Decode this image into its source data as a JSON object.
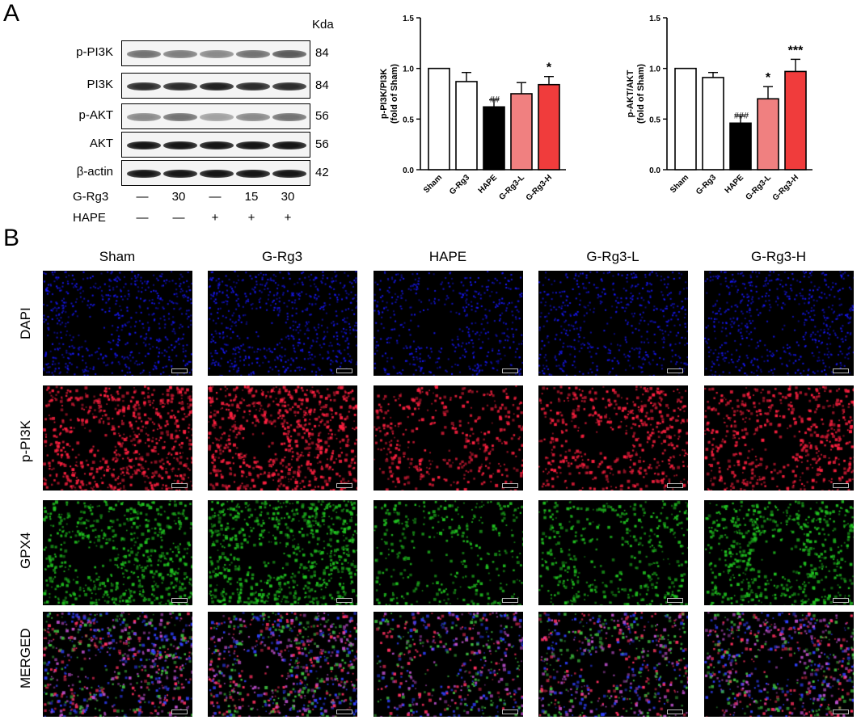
{
  "panel_a": {
    "letter": "A",
    "kda_header": "Kda",
    "blots": [
      {
        "label": "p-PI3K",
        "kda": "84",
        "intensities": [
          0.55,
          0.5,
          0.45,
          0.55,
          0.65
        ]
      },
      {
        "label": "PI3K",
        "kda": "84",
        "intensities": [
          0.85,
          0.85,
          0.9,
          0.85,
          0.85
        ]
      },
      {
        "label": "p-AKT",
        "kda": "56",
        "intensities": [
          0.45,
          0.55,
          0.35,
          0.45,
          0.55
        ]
      },
      {
        "label": "AKT",
        "kda": "56",
        "intensities": [
          0.95,
          0.95,
          0.95,
          0.95,
          0.95
        ]
      },
      {
        "label": "β-actin",
        "kda": "42",
        "intensities": [
          0.95,
          0.95,
          0.95,
          0.95,
          0.95
        ]
      }
    ],
    "treatments": [
      {
        "label": "G-Rg3",
        "values": [
          "—",
          "30",
          "—",
          "15",
          "30"
        ]
      },
      {
        "label": "HAPE",
        "values": [
          "—",
          "—",
          "+",
          "+",
          "+"
        ]
      }
    ]
  },
  "chart_data": [
    {
      "type": "bar",
      "ylabel": "p-PI3K/PI3K\n(fold of Sham)",
      "ylim": [
        0,
        1.5
      ],
      "yticks": [
        "0.0",
        "0.5",
        "1.0",
        "1.5"
      ],
      "categories": [
        "Sham",
        "G-Rg3",
        "HAPE",
        "G-Rg3-L",
        "G-Rg3-H"
      ],
      "values": [
        1.0,
        0.87,
        0.62,
        0.75,
        0.84
      ],
      "errors": [
        0,
        0.09,
        0.07,
        0.11,
        0.08
      ],
      "annotations": [
        "",
        "",
        "##",
        "",
        "*"
      ],
      "colors": [
        "#ffffff",
        "#ffffff",
        "#000000",
        "#f08080",
        "#f03c3c"
      ]
    },
    {
      "type": "bar",
      "ylabel": "p-AKT/AKT\n(fold of Sham)",
      "ylim": [
        0,
        1.5
      ],
      "yticks": [
        "0.0",
        "0.5",
        "1.0",
        "1.5"
      ],
      "categories": [
        "Sham",
        "G-Rg3",
        "HAPE",
        "G-Rg3-L",
        "G-Rg3-H"
      ],
      "values": [
        1.0,
        0.91,
        0.46,
        0.7,
        0.97
      ],
      "errors": [
        0,
        0.05,
        0.07,
        0.12,
        0.12
      ],
      "annotations": [
        "",
        "",
        "###",
        "*",
        "***"
      ],
      "colors": [
        "#ffffff",
        "#ffffff",
        "#000000",
        "#f08080",
        "#f03c3c"
      ]
    }
  ],
  "panel_b": {
    "letter": "B",
    "columns": [
      "Sham",
      "G-Rg3",
      "HAPE",
      "G-Rg3-L",
      "G-Rg3-H"
    ],
    "rows": [
      {
        "label": "DAPI",
        "color": "#1818ff",
        "density": [
          0.75,
          0.8,
          0.6,
          0.65,
          0.7
        ]
      },
      {
        "label": "p-PI3K",
        "color": "#ff2040",
        "density": [
          0.85,
          0.9,
          0.45,
          0.6,
          0.65
        ]
      },
      {
        "label": "GPX4",
        "color": "#20c020",
        "density": [
          0.75,
          0.9,
          0.4,
          0.5,
          0.7
        ]
      },
      {
        "label": "MERGED",
        "color": "#b040c0",
        "density": [
          0.85,
          0.9,
          0.6,
          0.7,
          0.75
        ]
      }
    ]
  }
}
